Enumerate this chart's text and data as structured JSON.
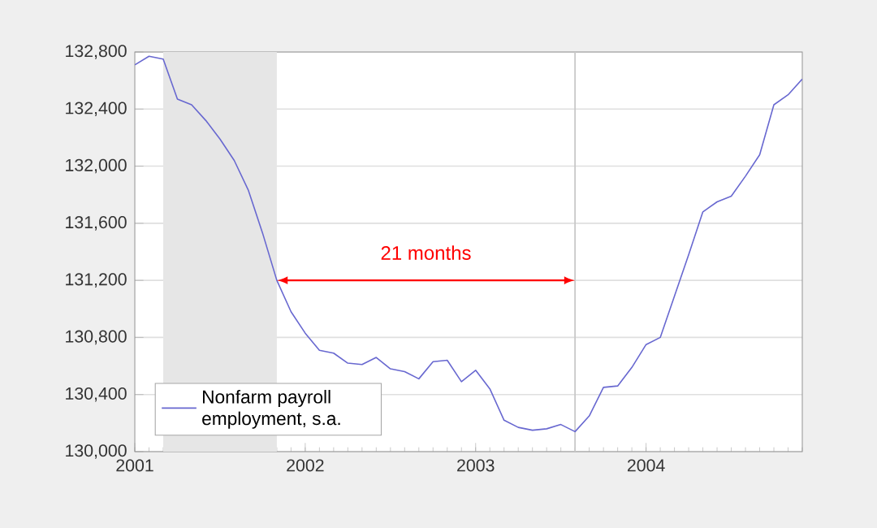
{
  "chart_data": {
    "type": "line",
    "x": [
      "2001-01",
      "2001-02",
      "2001-03",
      "2001-04",
      "2001-05",
      "2001-06",
      "2001-07",
      "2001-08",
      "2001-09",
      "2001-10",
      "2001-11",
      "2001-12",
      "2002-01",
      "2002-02",
      "2002-03",
      "2002-04",
      "2002-05",
      "2002-06",
      "2002-07",
      "2002-08",
      "2002-09",
      "2002-10",
      "2002-11",
      "2002-12",
      "2003-01",
      "2003-02",
      "2003-03",
      "2003-04",
      "2003-05",
      "2003-06",
      "2003-07",
      "2003-08",
      "2003-09",
      "2003-10",
      "2003-11",
      "2003-12",
      "2004-01",
      "2004-02",
      "2004-03",
      "2004-04",
      "2004-05",
      "2004-06",
      "2004-07",
      "2004-08",
      "2004-09",
      "2004-10",
      "2004-11",
      "2004-12"
    ],
    "series": [
      {
        "name": "Nonfarm payroll employment, s.a.",
        "color": "#6868d0",
        "values": [
          132710,
          132770,
          132750,
          132470,
          132430,
          132320,
          132190,
          132040,
          131830,
          131530,
          131200,
          130980,
          130830,
          130710,
          130690,
          130620,
          130610,
          130660,
          130580,
          130560,
          130510,
          130630,
          130640,
          130490,
          130570,
          130440,
          130220,
          130170,
          130150,
          130160,
          130190,
          130140,
          130250,
          130450,
          130460,
          130590,
          130750,
          130800,
          131090,
          131380,
          131680,
          131750,
          131790,
          131930,
          132080,
          132430,
          132500,
          132610
        ]
      }
    ],
    "xlim": [
      "2001-01",
      "2004-12"
    ],
    "xticks": [
      "2001",
      "2002",
      "2003",
      "2004"
    ],
    "ylim": [
      130000,
      132800
    ],
    "yticks": [
      {
        "value": 130000,
        "label": "130,000"
      },
      {
        "value": 130400,
        "label": "130,400"
      },
      {
        "value": 130800,
        "label": "130,800"
      },
      {
        "value": 131200,
        "label": "131,200"
      },
      {
        "value": 131600,
        "label": "131,600"
      },
      {
        "value": 132000,
        "label": "132,000"
      },
      {
        "value": 132400,
        "label": "132,400"
      },
      {
        "value": 132800,
        "label": "132,800"
      }
    ],
    "grid": "y",
    "legend": "bottom left",
    "bands": [
      {
        "axis": "x",
        "from": "2001-03",
        "to": "2001-11",
        "color": "#e6e6e6"
      }
    ],
    "ref_lines": [
      {
        "axis": "x",
        "value": "2003-08",
        "color": "#c8c8c8"
      }
    ],
    "annotations": [
      "21 months"
    ]
  }
}
